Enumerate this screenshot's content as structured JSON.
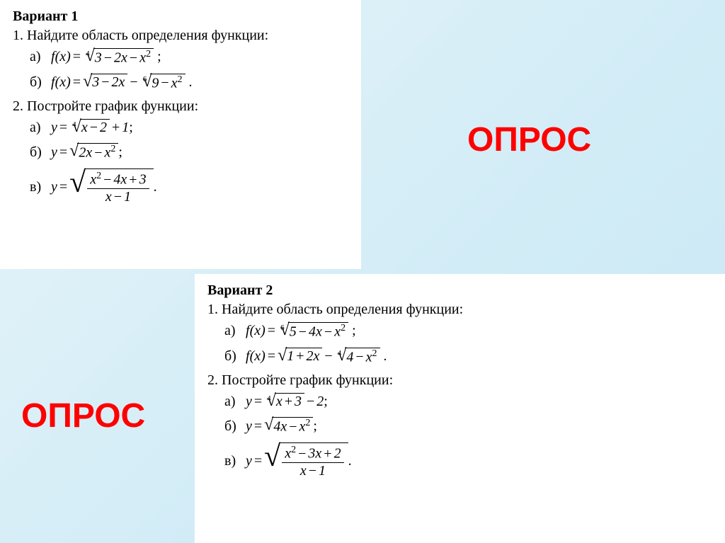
{
  "variant1": {
    "title": "Вариант 1",
    "task1": "1. Найдите область определения функции:",
    "task1a_label": "а)",
    "task1b_label": "б)",
    "task2": "2. Постройте график функции:",
    "task2a_label": "а)",
    "task2b_label": "б)",
    "task2v_label": "в)"
  },
  "variant2": {
    "title": "Вариант 2",
    "task1": "1. Найдите область определения функции:",
    "task1a_label": "а)",
    "task1b_label": "б)",
    "task2": "2. Постройте график функции:",
    "task2a_label": "а)",
    "task2b_label": "б)",
    "task2v_label": "в)"
  },
  "opros": "ОПРОС",
  "style": {
    "background_gradient": [
      "#e8f4f8",
      "#d4edf7",
      "#c8e8f5"
    ],
    "panel_bg": "#ffffff",
    "opros_color": "#ff0000",
    "opros_fontsize": 48,
    "text_color": "#000000",
    "body_fontsize": 20,
    "title_fontsize": 20
  },
  "formulas": {
    "v1_1a": "f(x) = ⁴√(3 − 2x − x²)",
    "v1_1b": "f(x) = √(3 − 2x) − ⁶√(9 − x²)",
    "v1_2a": "y = ⁴√(x − 2) + 1",
    "v1_2b": "y = √(2x − x²)",
    "v1_2v": "y = √((x² − 4x + 3)/(x − 1))",
    "v2_1a": "f(x) = ⁶√(5 − 4x − x²)",
    "v2_1b": "f(x) = √(1 + 2x) − ⁴√(4 − x²)",
    "v2_2a": "y = ⁴√(x + 3) − 2",
    "v2_2b": "y = √(4x − x²)",
    "v2_2v": "y = √((x² − 3x + 2)/(x − 1))"
  }
}
